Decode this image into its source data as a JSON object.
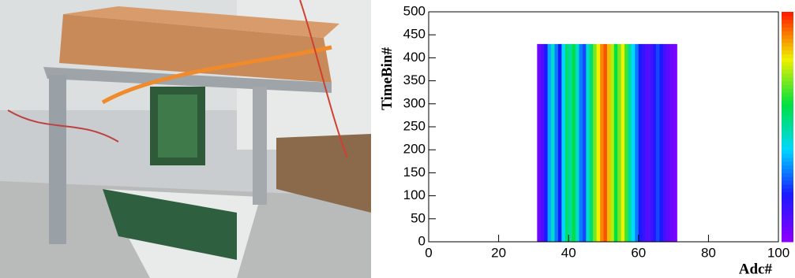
{
  "chart_data": {
    "type": "heatmap",
    "xlabel": "Adc#",
    "ylabel": "TimeBin#",
    "xlim": [
      0,
      100
    ],
    "ylim": [
      0,
      500
    ],
    "xticks": [
      0,
      20,
      40,
      60,
      80,
      100
    ],
    "yticks": [
      0,
      50,
      100,
      150,
      200,
      250,
      300,
      350,
      400,
      450,
      500
    ],
    "xbins": [
      31,
      32,
      33,
      34,
      35,
      36,
      37,
      38,
      39,
      40,
      41,
      42,
      43,
      44,
      45,
      46,
      47,
      48,
      49,
      50,
      51,
      52,
      53,
      54,
      55,
      56,
      57,
      58,
      59,
      60,
      61,
      62,
      63,
      64,
      65,
      66,
      67,
      68,
      69,
      70,
      71
    ],
    "ybins": [
      0,
      430
    ],
    "zlim": [
      0,
      1
    ],
    "values": [
      [
        0.05,
        0.1,
        0.2,
        0.35,
        0.45,
        0.3,
        0.2,
        0.4,
        0.55,
        0.5,
        0.6,
        0.45,
        0.3,
        0.25,
        0.45,
        0.55,
        0.7,
        0.8,
        0.9,
        0.95,
        0.85,
        0.75,
        0.6,
        0.7,
        0.8,
        0.65,
        0.5,
        0.4,
        0.3,
        0.2,
        0.15,
        0.1,
        0.12,
        0.18,
        0.25,
        0.2,
        0.12,
        0.08,
        0.05,
        0.03
      ]
    ],
    "colors": [
      "#8a00ff",
      "#1a1aff",
      "#00d8ff",
      "#00e040",
      "#f0f000",
      "#ff2000"
    ]
  }
}
